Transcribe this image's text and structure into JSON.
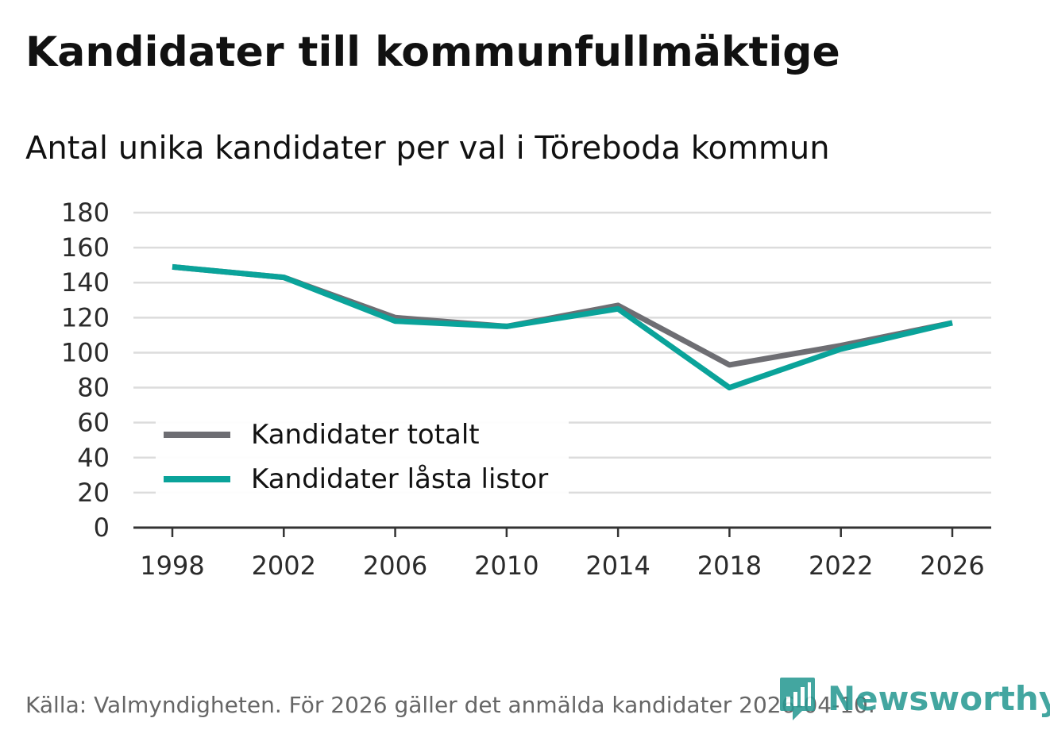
{
  "chart_data": {
    "type": "line",
    "title": "Kandidater till kommunfullmäktige",
    "subtitle": "Antal unika kandidater per val i Töreboda kommun",
    "xlabel": "",
    "ylabel": "",
    "x": [
      1998,
      2002,
      2006,
      2010,
      2014,
      2018,
      2022,
      2026
    ],
    "x_ticks": [
      "1998",
      "2002",
      "2006",
      "2010",
      "2014",
      "2018",
      "2022",
      "2026"
    ],
    "y_ticks": [
      "0",
      "20",
      "40",
      "60",
      "80",
      "100",
      "120",
      "140",
      "160",
      "180"
    ],
    "ylim": [
      0,
      180
    ],
    "xlim": [
      1998,
      2026
    ],
    "grid": true,
    "legend_position": "bottom-left",
    "series": [
      {
        "name": "Kandidater totalt",
        "color": "#6e6e73",
        "values": [
          149,
          143,
          120,
          115,
          127,
          93,
          104,
          117
        ]
      },
      {
        "name": "Kandidater låsta listor",
        "color": "#0aa39a",
        "values": [
          149,
          143,
          118,
          115,
          125,
          80,
          102,
          117
        ]
      }
    ],
    "source": "Källa: Valmyndigheten. För 2026 gäller det anmälda kandidater 2026-04-10."
  },
  "brand": {
    "name": "Newsworthy",
    "logo_icon": "bar-chart-pin-icon",
    "color": "#2a9a93"
  }
}
